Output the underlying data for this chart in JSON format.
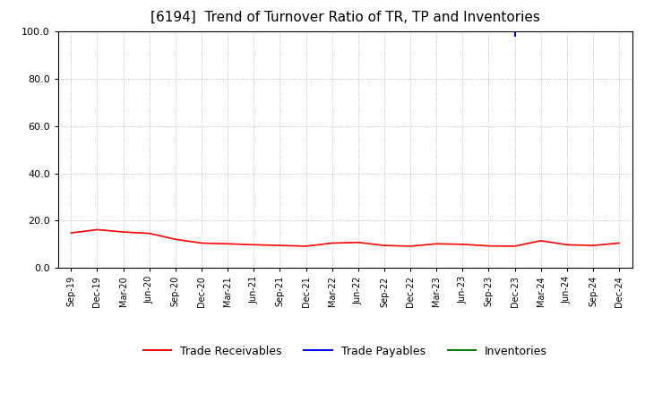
{
  "title": "[6194]  Trend of Turnover Ratio of TR, TP and Inventories",
  "title_fontsize": 11,
  "ylim": [
    0.0,
    100.0
  ],
  "yticks": [
    0.0,
    20.0,
    40.0,
    60.0,
    80.0,
    100.0
  ],
  "x_labels": [
    "Sep-19",
    "Dec-19",
    "Mar-20",
    "Jun-20",
    "Sep-20",
    "Dec-20",
    "Mar-21",
    "Jun-21",
    "Sep-21",
    "Dec-21",
    "Mar-22",
    "Jun-22",
    "Sep-22",
    "Dec-22",
    "Mar-23",
    "Jun-23",
    "Sep-23",
    "Dec-23",
    "Mar-24",
    "Jun-24",
    "Sep-24",
    "Dec-24"
  ],
  "trade_receivables": [
    14.8,
    16.2,
    15.2,
    14.6,
    12.1,
    10.5,
    10.2,
    9.8,
    9.5,
    9.2,
    10.5,
    10.8,
    9.5,
    9.2,
    10.2,
    10.0,
    9.3,
    9.2,
    11.5,
    9.8,
    9.5,
    10.5
  ],
  "trade_payables": [
    null,
    null,
    null,
    null,
    null,
    null,
    null,
    null,
    null,
    null,
    null,
    null,
    null,
    null,
    null,
    null,
    null,
    99.5,
    null,
    null,
    null,
    null
  ],
  "inventories": [
    null,
    null,
    null,
    null,
    null,
    null,
    null,
    null,
    null,
    null,
    null,
    null,
    null,
    null,
    null,
    null,
    null,
    null,
    null,
    null,
    null,
    null
  ],
  "tr_color": "#FF0000",
  "tp_color": "#0000FF",
  "inv_color": "#008000",
  "background_color": "#FFFFFF",
  "grid_color": "#AAAAAA",
  "legend_labels": [
    "Trade Receivables",
    "Trade Payables",
    "Inventories"
  ]
}
